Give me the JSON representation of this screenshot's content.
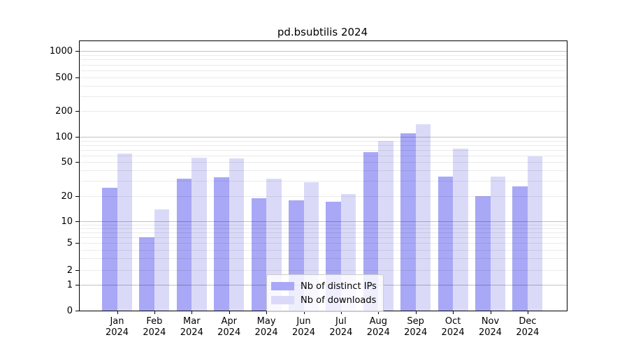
{
  "title": "pd.bsubtilis 2024",
  "chart_data": {
    "type": "bar",
    "title": "pd.bsubtilis 2024",
    "categories": [
      "Jan",
      "Feb",
      "Mar",
      "Apr",
      "May",
      "Jun",
      "Jul",
      "Aug",
      "Sep",
      "Oct",
      "Nov",
      "Dec"
    ],
    "year_label": "2024",
    "series": [
      {
        "name": "Nb of distinct IPs",
        "color": "#a8a8f6",
        "values": [
          25,
          6,
          32,
          33,
          19,
          18,
          17,
          65,
          110,
          34,
          20,
          26
        ]
      },
      {
        "name": "Nb of downloads",
        "color": "#dadaf8",
        "values": [
          63,
          14,
          56,
          55,
          32,
          29,
          21,
          90,
          140,
          72,
          34,
          58
        ]
      }
    ],
    "xlabel": "",
    "ylabel": "",
    "yscale": "symlog",
    "ytick_values": [
      0,
      1,
      2,
      5,
      10,
      20,
      50,
      100,
      200,
      500,
      1000
    ],
    "ytick_labels": [
      "0",
      "1",
      "2",
      "5",
      "10",
      "20",
      "50",
      "100",
      "200",
      "500",
      "1000"
    ],
    "ylim": [
      0,
      1400
    ],
    "grid": true,
    "legend_position": "lower center",
    "colors": {
      "major_grid": "rgba(0,0,0,0.24)",
      "minor_grid": "rgba(0,0,0,0.08)",
      "spine": "#000000",
      "legend_border": "#cccccc"
    }
  }
}
